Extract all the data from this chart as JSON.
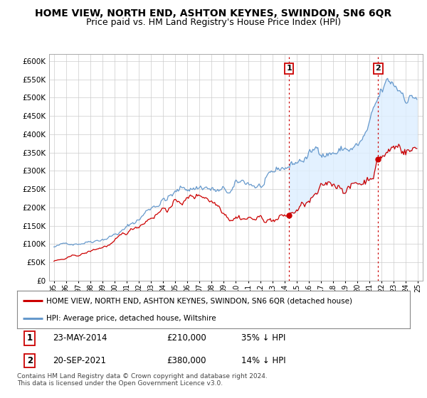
{
  "title": "HOME VIEW, NORTH END, ASHTON KEYNES, SWINDON, SN6 6QR",
  "subtitle": "Price paid vs. HM Land Registry's House Price Index (HPI)",
  "ylim": [
    0,
    620000
  ],
  "yticks": [
    0,
    50000,
    100000,
    150000,
    200000,
    250000,
    300000,
    350000,
    400000,
    450000,
    500000,
    550000,
    600000
  ],
  "background_color": "#ffffff",
  "grid_color": "#cccccc",
  "hpi_color": "#6699cc",
  "hpi_fill_color": "#ddeeff",
  "price_color": "#cc0000",
  "vline_color": "#cc0000",
  "legend_entry1": "HOME VIEW, NORTH END, ASHTON KEYNES, SWINDON, SN6 6QR (detached house)",
  "legend_entry2": "HPI: Average price, detached house, Wiltshire",
  "table_row1_num": "1",
  "table_row1_date": "23-MAY-2014",
  "table_row1_price": "£210,000",
  "table_row1_hpi": "35% ↓ HPI",
  "table_row2_num": "2",
  "table_row2_date": "20-SEP-2021",
  "table_row2_price": "£380,000",
  "table_row2_hpi": "14% ↓ HPI",
  "footer": "Contains HM Land Registry data © Crown copyright and database right 2024.\nThis data is licensed under the Open Government Licence v3.0.",
  "title_fontsize": 10,
  "subtitle_fontsize": 9,
  "sale1_x": 2014.38,
  "sale2_x": 2021.72
}
